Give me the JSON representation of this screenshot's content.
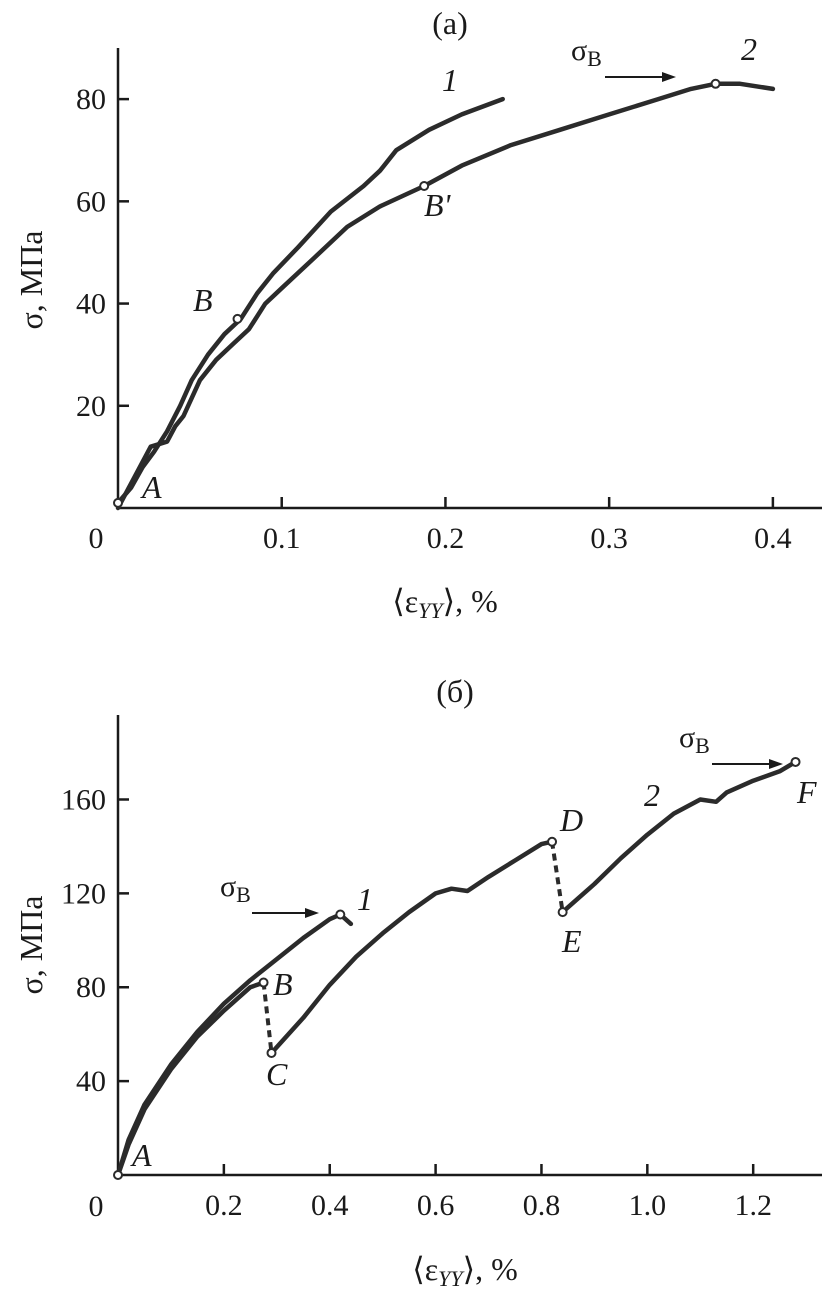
{
  "chart_data": [
    {
      "type": "line",
      "title": "(a)",
      "xlabel": "⟨εYY⟩, %",
      "xlabel_main": "⟨ε",
      "xlabel_sub": "YY",
      "xlabel_tail": "⟩, %",
      "ylabel": "σ, МПа",
      "xlim": [
        0,
        0.43
      ],
      "ylim": [
        0,
        90
      ],
      "xticks": [
        0.1,
        0.2,
        0.3,
        0.4
      ],
      "xtick_labels": [
        "0.1",
        "0.2",
        "0.3",
        "0.4"
      ],
      "yticks": [
        20,
        40,
        60,
        80
      ],
      "ytick_labels": [
        "20",
        "40",
        "60",
        "80"
      ],
      "origin_label": "0",
      "grid": false,
      "series": [
        {
          "name": "1",
          "x": [
            0.0,
            0.008,
            0.015,
            0.022,
            0.03,
            0.038,
            0.045,
            0.055,
            0.065,
            0.075,
            0.085,
            0.095,
            0.11,
            0.13,
            0.15,
            0.16,
            0.17,
            0.19,
            0.21,
            0.235
          ],
          "y": [
            1,
            4,
            8,
            11,
            15,
            20,
            25,
            30,
            34,
            37,
            42,
            46,
            51,
            58,
            63,
            66,
            70,
            74,
            77,
            80
          ]
        },
        {
          "name": "2",
          "x": [
            0.0,
            0.01,
            0.02,
            0.03,
            0.035,
            0.04,
            0.05,
            0.06,
            0.07,
            0.08,
            0.09,
            0.1,
            0.12,
            0.14,
            0.16,
            0.187,
            0.21,
            0.24,
            0.27,
            0.3,
            0.33,
            0.35,
            0.365,
            0.38,
            0.4
          ],
          "y": [
            0,
            6,
            12,
            13,
            16,
            18,
            25,
            29,
            32,
            35,
            40,
            43,
            49,
            55,
            59,
            63,
            67,
            71,
            74,
            77,
            80,
            82,
            83,
            83,
            82
          ]
        }
      ],
      "points": [
        {
          "label": "A",
          "x": 0.0,
          "y": 1
        },
        {
          "label": "B",
          "x": 0.073,
          "y": 37
        },
        {
          "label": "B'",
          "x": 0.187,
          "y": 63
        },
        {
          "label": "",
          "x": 0.365,
          "y": 83
        }
      ],
      "annotations": [
        {
          "text_main": "σ",
          "text_sub": "B",
          "series": "2",
          "x": 0.365,
          "y": 83
        }
      ]
    },
    {
      "type": "line",
      "title": "(б)",
      "xlabel": "⟨εYY⟩, %",
      "xlabel_main": "⟨ε",
      "xlabel_sub": "YY",
      "xlabel_tail": "⟩, %",
      "ylabel": "σ, МПа",
      "xlim": [
        0,
        1.33
      ],
      "ylim": [
        0,
        196
      ],
      "xticks": [
        0.2,
        0.4,
        0.6,
        0.8,
        1.0,
        1.2
      ],
      "xtick_labels": [
        "0.2",
        "0.4",
        "0.6",
        "0.8",
        "1.0",
        "1.2"
      ],
      "yticks": [
        40,
        80,
        120,
        160
      ],
      "ytick_labels": [
        "40",
        "80",
        "120",
        "160"
      ],
      "origin_label": "0",
      "grid": false,
      "series": [
        {
          "name": "1",
          "x": [
            0.0,
            0.02,
            0.05,
            0.1,
            0.15,
            0.2,
            0.25,
            0.3,
            0.35,
            0.4,
            0.42,
            0.44
          ],
          "y": [
            0,
            15,
            30,
            47,
            61,
            73,
            83,
            92,
            101,
            109,
            111,
            107
          ]
        },
        {
          "name": "2",
          "segments": [
            {
              "x": [
                0.0,
                0.02,
                0.05,
                0.1,
                0.15,
                0.2,
                0.25,
                0.275
              ],
              "y": [
                0,
                13,
                28,
                45,
                59,
                70,
                80,
                82
              ]
            },
            {
              "x": [
                0.29,
                0.35,
                0.4,
                0.45,
                0.5,
                0.55,
                0.6,
                0.63,
                0.66,
                0.7,
                0.75,
                0.8,
                0.82
              ],
              "y": [
                52,
                67,
                81,
                93,
                103,
                112,
                120,
                122,
                121,
                127,
                134,
                141,
                142
              ]
            },
            {
              "x": [
                0.84,
                0.9,
                0.95,
                1.0,
                1.05,
                1.1,
                1.13,
                1.15,
                1.2,
                1.25,
                1.28
              ],
              "y": [
                112,
                124,
                135,
                145,
                154,
                160,
                159,
                163,
                168,
                172,
                176
              ]
            }
          ],
          "drops": [
            {
              "from": [
                0.275,
                82
              ],
              "to": [
                0.29,
                52
              ]
            },
            {
              "from": [
                0.82,
                142
              ],
              "to": [
                0.84,
                112
              ]
            }
          ]
        }
      ],
      "points": [
        {
          "label": "A",
          "x": 0.0,
          "y": 0
        },
        {
          "label": "B",
          "x": 0.275,
          "y": 82
        },
        {
          "label": "C",
          "x": 0.29,
          "y": 52
        },
        {
          "label": "D",
          "x": 0.82,
          "y": 142
        },
        {
          "label": "E",
          "x": 0.84,
          "y": 112
        },
        {
          "label": "F",
          "x": 1.28,
          "y": 176
        },
        {
          "label": "",
          "x": 0.42,
          "y": 111
        }
      ],
      "annotations": [
        {
          "text_main": "σ",
          "text_sub": "B",
          "series": "1",
          "x": 0.42,
          "y": 111
        },
        {
          "text_main": "σ",
          "text_sub": "B",
          "series": "2",
          "x": 1.28,
          "y": 176
        }
      ]
    }
  ]
}
